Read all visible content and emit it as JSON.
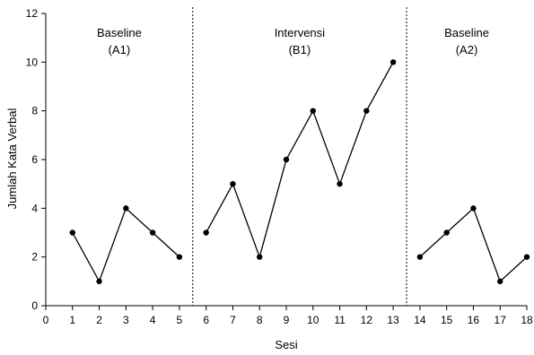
{
  "chart_data": {
    "type": "line",
    "title": "",
    "xlabel": "Sesi",
    "ylabel": "Jumlah Kata Verbal",
    "xlim": [
      0,
      18
    ],
    "ylim": [
      0,
      12
    ],
    "x_ticks": [
      0,
      1,
      2,
      3,
      4,
      5,
      6,
      7,
      8,
      9,
      10,
      11,
      12,
      13,
      14,
      15,
      16,
      17,
      18
    ],
    "y_ticks": [
      0,
      2,
      4,
      6,
      8,
      10,
      12
    ],
    "grid": false,
    "legend": "none",
    "line_color": "#000000",
    "phase_dividers": [
      5.5,
      13.5
    ],
    "phases": [
      {
        "name": "Baseline",
        "code": "(A1)",
        "x": [
          1,
          2,
          3,
          4,
          5
        ],
        "y": [
          3,
          1,
          4,
          3,
          2
        ]
      },
      {
        "name": "Intervensi",
        "code": "(B1)",
        "x": [
          6,
          7,
          8,
          9,
          10,
          11,
          12,
          13
        ],
        "y": [
          3,
          5,
          2,
          6,
          8,
          5,
          8,
          10
        ]
      },
      {
        "name": "Baseline",
        "code": "(A2)",
        "x": [
          14,
          15,
          16,
          17,
          18
        ],
        "y": [
          2,
          3,
          4,
          1,
          2
        ]
      }
    ]
  }
}
